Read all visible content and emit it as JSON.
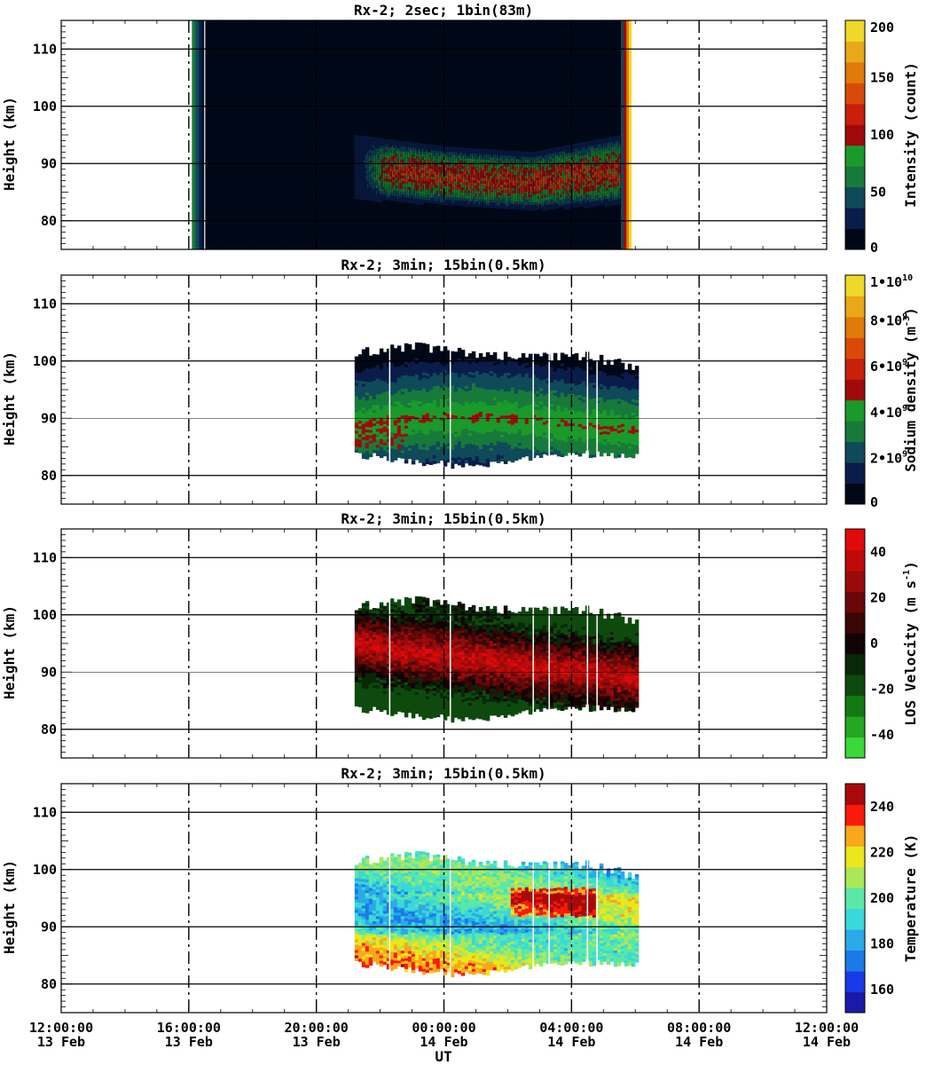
{
  "figure": {
    "x_axis_label": "UT",
    "x_ticks": [
      {
        "time": "12:00:00",
        "date": "13 Feb"
      },
      {
        "time": "16:00:00",
        "date": "13 Feb"
      },
      {
        "time": "20:00:00",
        "date": "13 Feb"
      },
      {
        "time": "00:00:00",
        "date": "14 Feb"
      },
      {
        "time": "04:00:00",
        "date": "14 Feb"
      },
      {
        "time": "08:00:00",
        "date": "14 Feb"
      },
      {
        "time": "12:00:00",
        "date": "14 Feb"
      }
    ]
  },
  "chart_data": [
    {
      "type": "heatmap",
      "title": "Rx-2;  2sec; 1bin(83m)",
      "ylabel": "Height (km)",
      "xlabel": "UT",
      "xlim_hours": [
        12,
        36
      ],
      "ylim": [
        75,
        115
      ],
      "yticks": [
        80,
        90,
        100,
        110
      ],
      "colorbar": {
        "label": "Intensity (count)",
        "range": [
          0,
          200
        ],
        "ticks": [
          {
            "value": 0,
            "label": "0"
          },
          {
            "value": 50,
            "label": "50"
          },
          {
            "value": 100,
            "label": "100"
          },
          {
            "value": 150,
            "label": "150"
          },
          {
            "value": 200,
            "label": "200"
          }
        ],
        "colors": [
          "#000818",
          "#0a1d4a",
          "#0f4a5a",
          "#177a3a",
          "#1a9a2a",
          "#a00a0a",
          "#c8200a",
          "#d84a0a",
          "#e07a0a",
          "#e8a818",
          "#f0d828"
        ]
      },
      "data_extent": {
        "t_start_hours": 16.1,
        "t_end_hours": 29.8,
        "layer_start_hours": 21.2,
        "layer_bottom_km": [
          84,
          83,
          82,
          83
        ],
        "layer_top_km": [
          95,
          93,
          92,
          95
        ]
      }
    },
    {
      "type": "heatmap",
      "title": "Rx-2; 3min; 15bin(0.5km)",
      "ylabel": "Height (km)",
      "xlabel": "UT",
      "xlim_hours": [
        12,
        36
      ],
      "ylim": [
        75,
        115
      ],
      "yticks": [
        80,
        90,
        100,
        110
      ],
      "colorbar": {
        "label": "Sodium density (m",
        "label_sup": "-3",
        "label_end": ")",
        "range": [
          0,
          10000000000
        ],
        "ticks": [
          {
            "value": 0,
            "label": "0"
          },
          {
            "value": 2000000000,
            "label": "2•10",
            "sup": "9"
          },
          {
            "value": 4000000000,
            "label": "4•10",
            "sup": "9"
          },
          {
            "value": 6000000000,
            "label": "6•10",
            "sup": "9"
          },
          {
            "value": 8000000000,
            "label": "8•10",
            "sup": "9"
          },
          {
            "value": 10000000000,
            "label": "1•10",
            "sup": "10"
          }
        ],
        "colors": [
          "#000818",
          "#0a1d4a",
          "#0f4a5a",
          "#177a3a",
          "#1a9a2a",
          "#a00a0a",
          "#c8200a",
          "#d84a0a",
          "#e07a0a",
          "#e8a818",
          "#f0d828"
        ]
      },
      "data_extent": {
        "t_start_hours": 21.2,
        "t_end_hours": 30.0,
        "bottom_km": [
          84,
          82.5,
          82,
          83,
          84,
          83.5
        ],
        "top_km": [
          101.5,
          102.5,
          101.5,
          100.5,
          101,
          99
        ]
      }
    },
    {
      "type": "heatmap",
      "title": "Rx-2; 3min; 15bin(0.5km)",
      "ylabel": "Height (km)",
      "xlabel": "UT",
      "xlim_hours": [
        12,
        36
      ],
      "ylim": [
        75,
        115
      ],
      "yticks": [
        80,
        90,
        100,
        110
      ],
      "colorbar": {
        "label": "LOS Velocity (m s",
        "label_sup": "-1",
        "label_end": ")",
        "range": [
          -50,
          50
        ],
        "ticks": [
          {
            "value": -40,
            "label": "-40"
          },
          {
            "value": -20,
            "label": "-20"
          },
          {
            "value": 0,
            "label": "0"
          },
          {
            "value": 20,
            "label": "20"
          },
          {
            "value": 40,
            "label": "40"
          }
        ],
        "colors": [
          "#3ad83a",
          "#23a823",
          "#137a13",
          "#0e4a0e",
          "#082808",
          "#120404",
          "#3a0606",
          "#6a0808",
          "#9a0a0a",
          "#c00a0a",
          "#e00a0a"
        ]
      },
      "data_extent": {
        "t_start_hours": 21.2,
        "t_end_hours": 30.0
      }
    },
    {
      "type": "heatmap",
      "title": "Rx-2; 3min; 15bin(0.5km)",
      "ylabel": "Height (km)",
      "xlabel": "UT",
      "xlim_hours": [
        12,
        36
      ],
      "ylim": [
        75,
        115
      ],
      "yticks": [
        80,
        90,
        100,
        110
      ],
      "colorbar": {
        "label": "Temperature (K)",
        "range": [
          150,
          250
        ],
        "ticks": [
          {
            "value": 160,
            "label": "160"
          },
          {
            "value": 180,
            "label": "180"
          },
          {
            "value": 200,
            "label": "200"
          },
          {
            "value": 220,
            "label": "220"
          },
          {
            "value": 240,
            "label": "240"
          }
        ],
        "colors": [
          "#1a1aa8",
          "#1a3ae8",
          "#1a7ae8",
          "#2aaae8",
          "#3ad8d8",
          "#5ae8a8",
          "#aae85a",
          "#e8e81a",
          "#f8a81a",
          "#f81a0a",
          "#a80a0a"
        ]
      },
      "data_extent": {
        "t_start_hours": 21.2,
        "t_end_hours": 30.0
      }
    }
  ]
}
